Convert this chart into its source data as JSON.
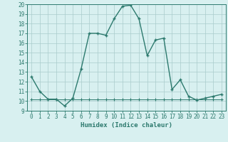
{
  "xlabel": "Humidex (Indice chaleur)",
  "x_main": [
    0,
    1,
    2,
    3,
    4,
    5,
    6,
    7,
    8,
    9,
    10,
    11,
    12,
    13,
    14,
    15,
    16,
    17,
    18,
    19,
    20,
    21,
    22,
    23
  ],
  "y_main": [
    12.5,
    11,
    10.2,
    10.2,
    9.5,
    10.3,
    13.3,
    17,
    17,
    16.8,
    18.5,
    19.8,
    19.9,
    18.5,
    14.7,
    16.3,
    16.5,
    11.2,
    12.2,
    10.5,
    10.1,
    10.3,
    10.5,
    10.7
  ],
  "x_flat": [
    0,
    1,
    2,
    3,
    4,
    5,
    6,
    7,
    8,
    9,
    10,
    11,
    12,
    13,
    14,
    15,
    16,
    17,
    18,
    19,
    20,
    21,
    22,
    23
  ],
  "y_flat": [
    10.2,
    10.2,
    10.2,
    10.2,
    10.2,
    10.2,
    10.2,
    10.2,
    10.2,
    10.2,
    10.2,
    10.2,
    10.2,
    10.2,
    10.2,
    10.2,
    10.2,
    10.2,
    10.2,
    10.2,
    10.2,
    10.2,
    10.2,
    10.2
  ],
  "line_color": "#2d7a6e",
  "bg_color": "#d8f0f0",
  "grid_color": "#aacccc",
  "ylim": [
    9,
    20
  ],
  "xlim": [
    -0.5,
    23.5
  ],
  "yticks": [
    9,
    10,
    11,
    12,
    13,
    14,
    15,
    16,
    17,
    18,
    19,
    20
  ],
  "xticks": [
    0,
    1,
    2,
    3,
    4,
    5,
    6,
    7,
    8,
    9,
    10,
    11,
    12,
    13,
    14,
    15,
    16,
    17,
    18,
    19,
    20,
    21,
    22,
    23
  ],
  "tick_fontsize": 5.5,
  "xlabel_fontsize": 6.5
}
